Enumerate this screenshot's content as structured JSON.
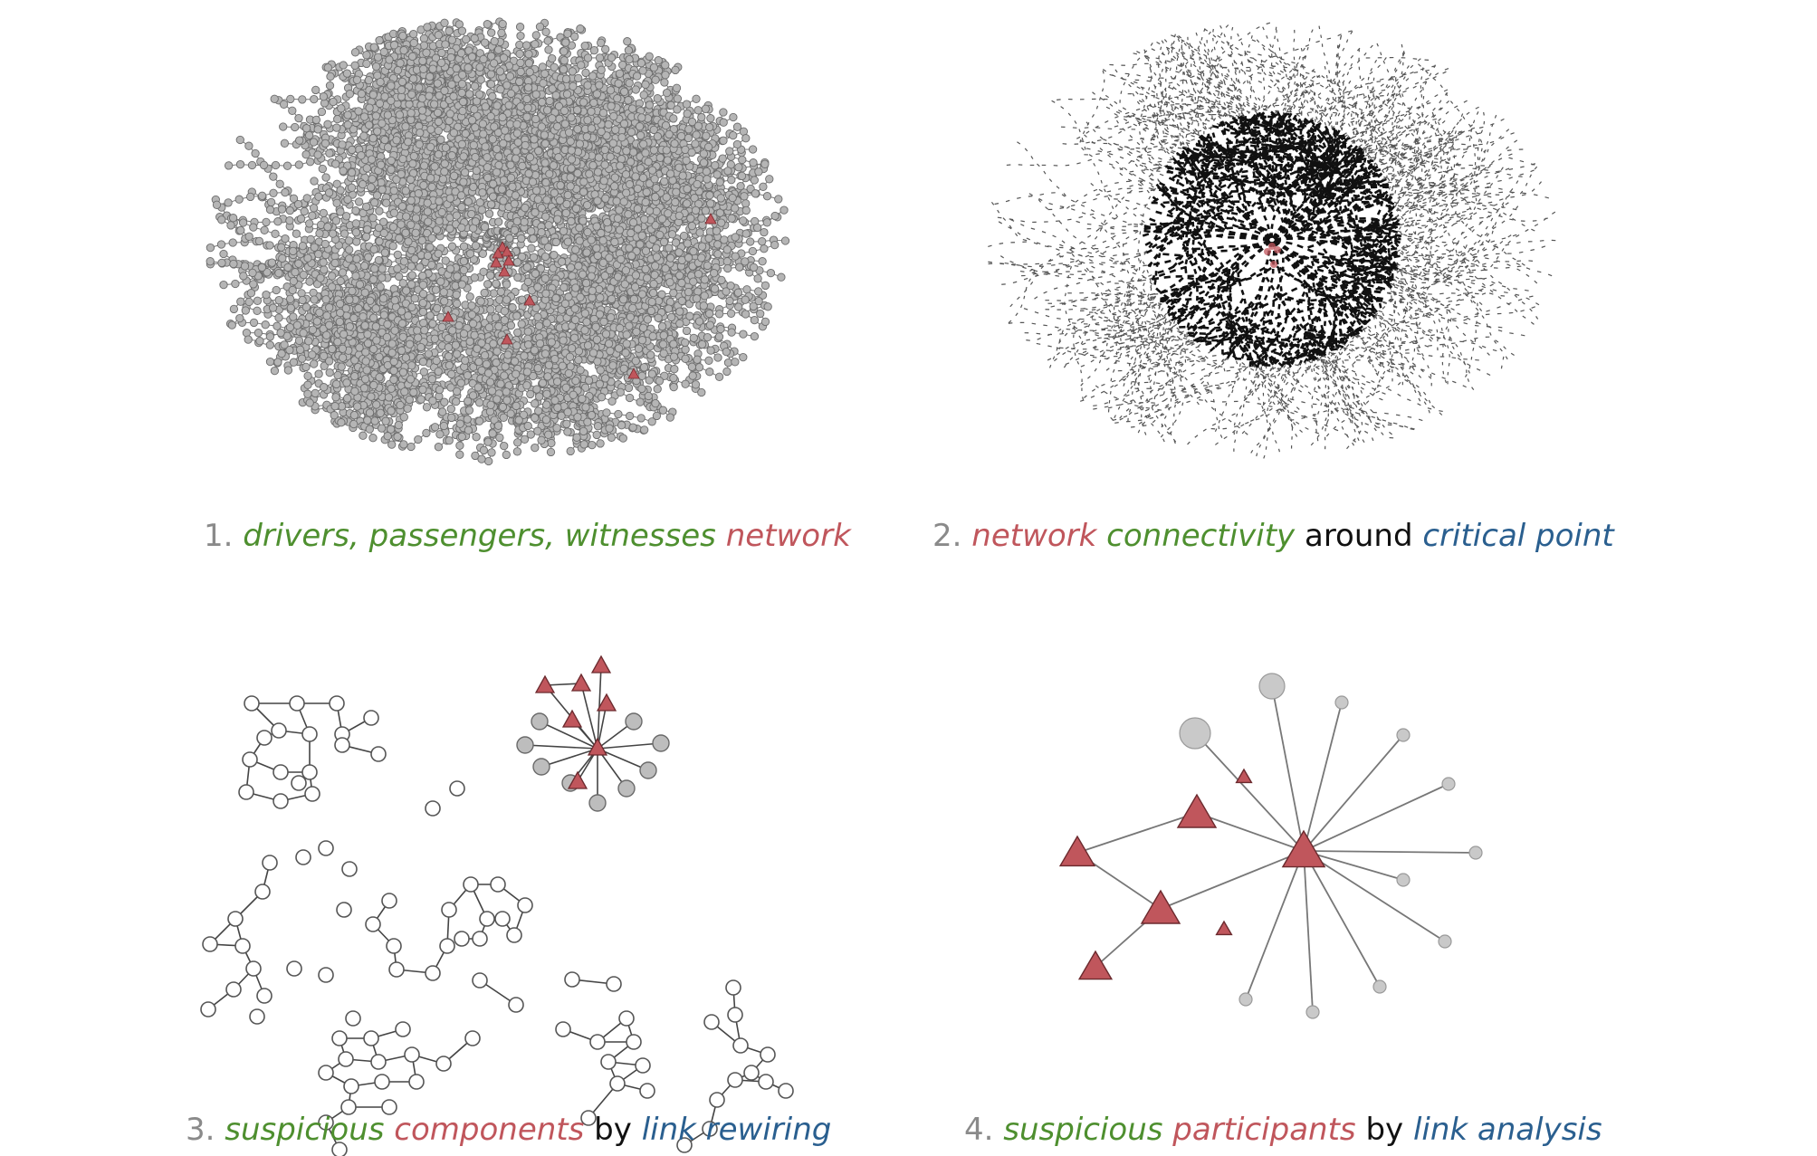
{
  "colors": {
    "green": "#4e8f2f",
    "red": "#c0565c",
    "blue": "#2a5f8f",
    "gray": "#8a8a8a",
    "black": "#111111",
    "node_gray": "#b8b8b8",
    "node_red": "#c0565c",
    "edge": "#555555"
  },
  "panels": [
    {
      "caption": [
        {
          "text": "1.",
          "color": "gray",
          "italic": false
        },
        {
          "text": "drivers,",
          "color": "green",
          "italic": true
        },
        {
          "text": "passengers,",
          "color": "green",
          "italic": true
        },
        {
          "text": "witnesses",
          "color": "green",
          "italic": true
        },
        {
          "text": "network",
          "color": "red",
          "italic": true
        }
      ]
    },
    {
      "caption": [
        {
          "text": "2.",
          "color": "gray",
          "italic": false
        },
        {
          "text": "network",
          "color": "red",
          "italic": true
        },
        {
          "text": "connectivity",
          "color": "green",
          "italic": true
        },
        {
          "text": "around",
          "color": "black",
          "italic": false
        },
        {
          "text": "critical",
          "color": "blue",
          "italic": true
        },
        {
          "text": "point",
          "color": "blue",
          "italic": true
        }
      ]
    },
    {
      "caption": [
        {
          "text": "3.",
          "color": "gray",
          "italic": false
        },
        {
          "text": "suspicious",
          "color": "green",
          "italic": true
        },
        {
          "text": "components",
          "color": "red",
          "italic": true
        },
        {
          "text": "by",
          "color": "black",
          "italic": false
        },
        {
          "text": "link",
          "color": "blue",
          "italic": true
        },
        {
          "text": "rewiring",
          "color": "blue",
          "italic": true
        }
      ]
    },
    {
      "caption": [
        {
          "text": "4.",
          "color": "gray",
          "italic": false
        },
        {
          "text": "suspicious",
          "color": "green",
          "italic": true
        },
        {
          "text": "participants",
          "color": "red",
          "italic": true
        },
        {
          "text": "by",
          "color": "black",
          "italic": false
        },
        {
          "text": "link",
          "color": "blue",
          "italic": true
        },
        {
          "text": "analysis",
          "color": "blue",
          "italic": true
        }
      ]
    }
  ]
}
